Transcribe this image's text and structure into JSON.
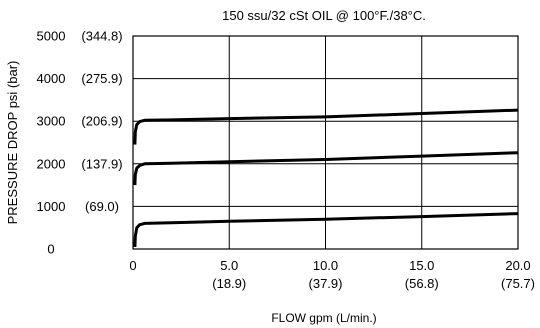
{
  "chart_data": {
    "type": "line",
    "title": "150 ssu/32 cSt OIL @ 100°F./38°C.",
    "xlabel": "FLOW gpm (L/min.)",
    "ylabel": "PRESSURE DROP psi (bar)",
    "xlim": [
      0,
      20
    ],
    "ylim": [
      0,
      5000
    ],
    "grid": true,
    "x_ticks": [
      {
        "value": 0,
        "label": "0",
        "sublabel": ""
      },
      {
        "value": 5,
        "label": "5.0",
        "sublabel": "(18.9)"
      },
      {
        "value": 10,
        "label": "10.0",
        "sublabel": "(37.9)"
      },
      {
        "value": 15,
        "label": "15.0",
        "sublabel": "(56.8)"
      },
      {
        "value": 20,
        "label": "20.0",
        "sublabel": "(75.7)"
      }
    ],
    "y_ticks": [
      {
        "value": 0,
        "label": "0",
        "sublabel": ""
      },
      {
        "value": 1000,
        "label": "1000",
        "sublabel": "(69.0)"
      },
      {
        "value": 2000,
        "label": "2000",
        "sublabel": "(137.9)"
      },
      {
        "value": 3000,
        "label": "3000",
        "sublabel": "(206.9)"
      },
      {
        "value": 4000,
        "label": "4000",
        "sublabel": "(275.9)"
      },
      {
        "value": 5000,
        "label": "5000",
        "sublabel": "(344.8)"
      }
    ],
    "series": [
      {
        "color": "#000000",
        "x": [
          0.1,
          0.12,
          0.2,
          0.35,
          0.6,
          2,
          5,
          10,
          15,
          20
        ],
        "y": [
          50,
          300,
          500,
          570,
          600,
          615,
          650,
          700,
          760,
          830
        ]
      },
      {
        "color": "#000000",
        "x": [
          0.1,
          0.12,
          0.2,
          0.35,
          0.6,
          2,
          5,
          10,
          15,
          20
        ],
        "y": [
          1500,
          1750,
          1900,
          1960,
          2000,
          2015,
          2050,
          2100,
          2180,
          2260
        ]
      },
      {
        "color": "#000000",
        "x": [
          0.1,
          0.12,
          0.2,
          0.35,
          0.6,
          2,
          5,
          10,
          15,
          20
        ],
        "y": [
          2450,
          2750,
          2920,
          2990,
          3020,
          3030,
          3060,
          3100,
          3180,
          3260
        ]
      }
    ]
  }
}
